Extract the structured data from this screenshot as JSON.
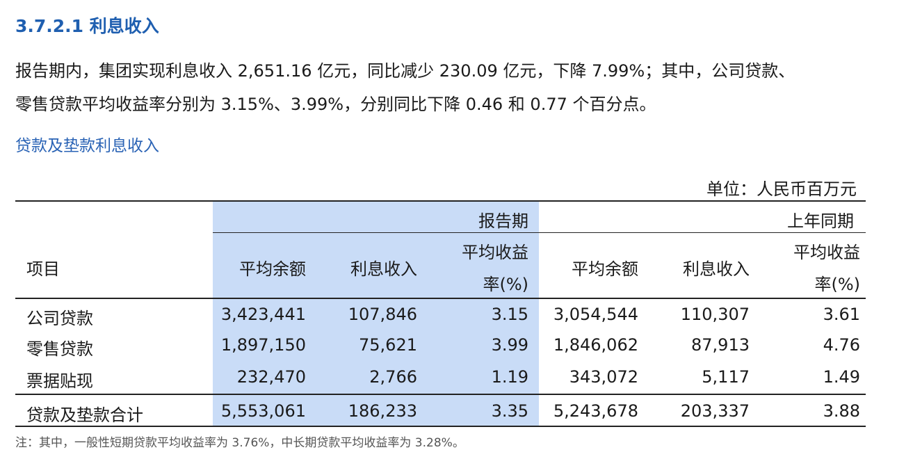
{
  "header": {
    "title": "3.7.2.1 利息收入"
  },
  "paragraphs": [
    "报告期内，集团实现利息收入 2,651.16 亿元，同比减少 230.09 亿元，下降 7.99%；其中，公司贷款、",
    "零售贷款平均收益率分别为 3.15%、3.99%，分别同比下降 0.46 和 0.77 个百分点。"
  ],
  "section_title": "贷款及垫款利息收入",
  "unit": "单位：人民币百万元",
  "table": {
    "groups": [
      "报告期",
      "上年同期"
    ],
    "columns": [
      "项目",
      "平均余额",
      "利息收入",
      "平均收益率(%)",
      "平均余额",
      "利息收入",
      "平均收益率(%)"
    ],
    "rows": [
      [
        "公司贷款",
        "3,423,441",
        "107,846",
        "3.15",
        "3,054,544",
        "110,307",
        "3.61"
      ],
      [
        "零售贷款",
        "1,897,150",
        "75,621",
        "3.99",
        "1,846,062",
        "87,913",
        "4.76"
      ],
      [
        "票据贴现",
        "232,470",
        "2,766",
        "1.19",
        "343,072",
        "5,117",
        "1.49"
      ],
      [
        "贷款及垫款合计",
        "5,553,061",
        "186,233",
        "3.35",
        "5,243,678",
        "203,337",
        "3.88"
      ]
    ]
  },
  "note": "注：其中，一般性短期贷款平均收益率为 3.76%，中长期贷款平均收益率为 3.28%。"
}
